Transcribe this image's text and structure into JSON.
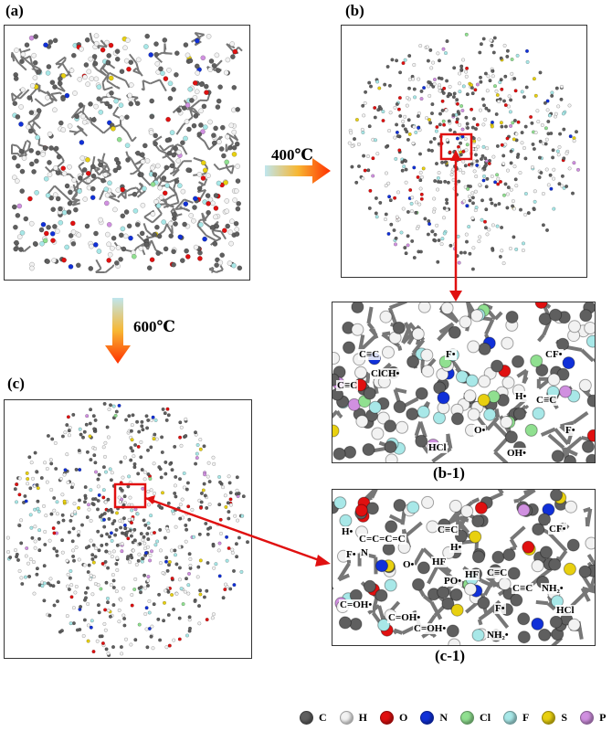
{
  "labels": {
    "a": "(a)",
    "b": "(b)",
    "c": "(c)",
    "b1": "(b-1)",
    "c1": "(c-1)"
  },
  "temperatures": {
    "t400": "400℃",
    "t600": "600℃"
  },
  "annotations_b1": [
    "C≡C",
    "F•",
    "CF•",
    "ClCH•",
    "C≡C",
    "H•",
    "C≡C",
    "O•",
    "F•",
    "HCl",
    "OH•"
  ],
  "annotations_c1": [
    "H•",
    "C=C=C=C",
    "C≡C",
    "CF•",
    "N",
    "F•",
    "H•",
    "O•",
    "HF",
    "HF",
    "C≡C",
    "PO•",
    "C≡C",
    "NH₂•",
    "C=OH•",
    "F•",
    "C=OH•",
    "HCl",
    "C=OH•",
    "NH₂•"
  ],
  "legend": [
    {
      "symbol": "C",
      "color": "#5f5f5f"
    },
    {
      "symbol": "H",
      "color": "#f2f2f2"
    },
    {
      "symbol": "O",
      "color": "#e01010"
    },
    {
      "symbol": "N",
      "color": "#1030d8"
    },
    {
      "symbol": "Cl",
      "color": "#90e090"
    },
    {
      "symbol": "F",
      "color": "#a8e8e8"
    },
    {
      "symbol": "S",
      "color": "#e8d010"
    },
    {
      "symbol": "P",
      "color": "#d090e0"
    }
  ]
}
